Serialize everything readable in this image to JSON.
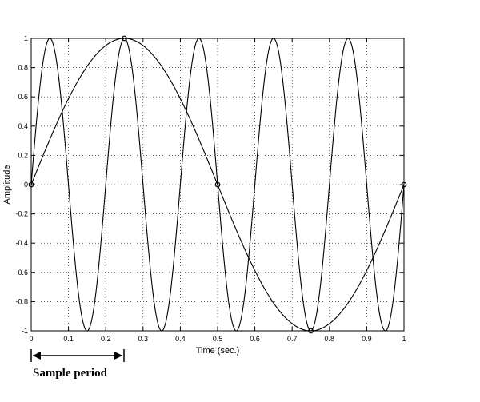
{
  "chart_data": {
    "type": "line",
    "xlabel": "Time (sec.)",
    "ylabel": "Amplitude",
    "xlim": [
      0,
      1
    ],
    "ylim": [
      -1,
      1
    ],
    "xticks": [
      "0",
      "0.1",
      "0.2",
      "0.3",
      "0.4",
      "0.5",
      "0.6",
      "0.7",
      "0.8",
      "0.9",
      "1"
    ],
    "yticks": [
      "1",
      "0.8",
      "0.6",
      "0.4",
      "0.2",
      "0",
      "-0.2",
      "-0.4",
      "-0.6",
      "-0.8",
      "-1"
    ],
    "grid": true,
    "series": [
      {
        "function": "sin(2*pi*1*t)",
        "frequency_hz": 1
      },
      {
        "function": "sin(2*pi*5*t)",
        "frequency_hz": 5
      }
    ],
    "sample_points": {
      "x": [
        0,
        0.25,
        0.5,
        0.75,
        1.0
      ],
      "y": [
        0,
        1,
        0,
        -1,
        0
      ]
    },
    "annotation": {
      "text": "Sample period",
      "from_x": 0,
      "to_x": 0.25
    }
  }
}
